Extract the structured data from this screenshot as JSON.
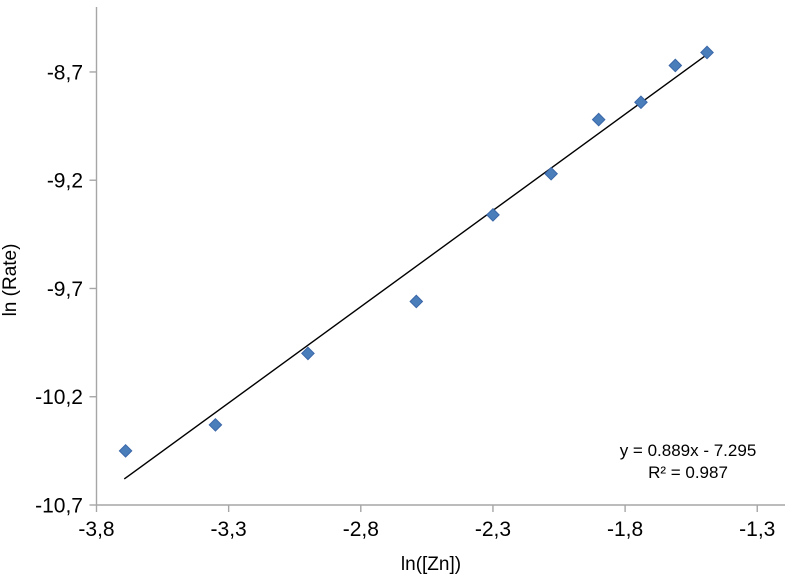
{
  "chart_data": {
    "type": "scatter",
    "title": "",
    "xlabel": "ln([Zn])",
    "ylabel": "ln (Rate)",
    "grid": false,
    "legend": false,
    "x": [
      -3.69,
      -3.35,
      -3.0,
      -2.59,
      -2.3,
      -2.08,
      -1.9,
      -1.74,
      -1.61,
      -1.49
    ],
    "y": [
      -10.45,
      -10.33,
      -10.0,
      -9.76,
      -9.36,
      -9.17,
      -8.92,
      -8.84,
      -8.67,
      -8.61
    ],
    "x_axis": {
      "min": -3.8,
      "max": -1.195,
      "tick_values": [
        -3.8,
        -3.3,
        -2.8,
        -2.3,
        -1.8,
        -1.3
      ],
      "tick_labels": [
        "-3,8",
        "-3,3",
        "-2,8",
        "-2,3",
        "-1,8",
        "-1,3"
      ]
    },
    "y_axis": {
      "min": -10.7,
      "max": -8.4,
      "tick_values": [
        -8.7,
        -9.2,
        -9.7,
        -10.2,
        -10.7
      ],
      "tick_labels": [
        "-8,7",
        "-9,2",
        "-9,7",
        "-10,2",
        "-10,7"
      ]
    },
    "trendline": {
      "slope": 0.889,
      "intercept": -7.295,
      "x_start": -3.695,
      "x_end": -1.478,
      "equation_label": "y = 0.889x - 7.295",
      "r_squared_label": "R² = 0.987"
    },
    "marker": {
      "shape": "diamond",
      "fill": "#4A7EBB",
      "stroke": "#3A67A8",
      "half_size": 6.2
    },
    "colors": {
      "axis_line": "#A6A6A6",
      "trendline": "#000000",
      "text": "#000000",
      "background": "#FFFFFF"
    }
  }
}
